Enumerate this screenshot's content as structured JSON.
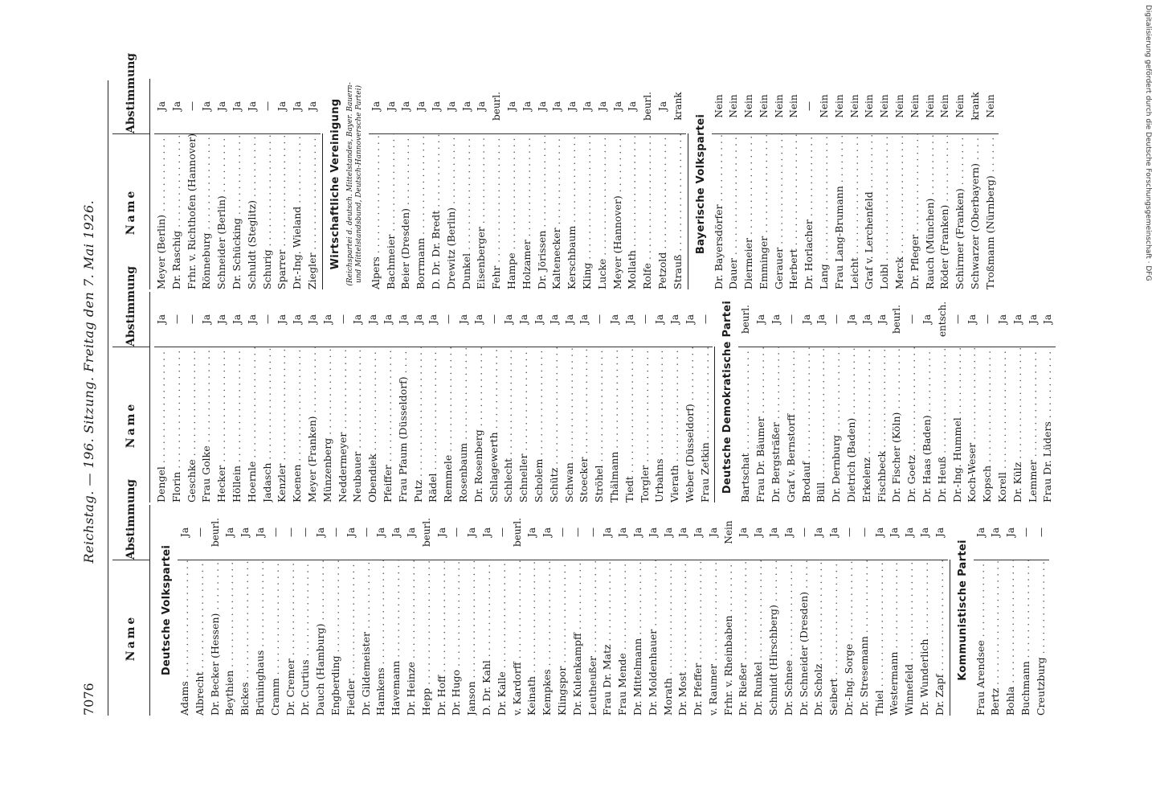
{
  "header": {
    "page_number": "7076",
    "title": "Reichstag. — 196. Sitzung. Freitag den 7. Mai 1926."
  },
  "column_headers": {
    "name": "Name",
    "vote": "Abstimmung"
  },
  "sidenote": "Digitalisierung gefördert durch die Deutsche Forschungsgemeinschaft · DFG",
  "block1": [
    {
      "party": "Deutsche Volkspartei",
      "rows": [
        {
          "n": "Adams",
          "v": "Ja"
        },
        {
          "n": "Albrecht",
          "v": "—"
        },
        {
          "n": "Dr. Becker (Hessen)",
          "v": "beurl."
        },
        {
          "n": "Beythien",
          "v": "Ja"
        },
        {
          "n": "Bickes",
          "v": "Ja"
        },
        {
          "n": "Brüninghaus",
          "v": "Ja"
        },
        {
          "n": "Cramm",
          "v": "—"
        },
        {
          "n": "Dr. Cremer",
          "v": "—"
        },
        {
          "n": "Dr. Curtius",
          "v": "—"
        },
        {
          "n": "Dauch (Hamburg)",
          "v": "Ja"
        },
        {
          "n": "Engberding",
          "v": "—"
        },
        {
          "n": "Fiedler",
          "v": "Ja"
        },
        {
          "n": "Dr. Gildemeister",
          "v": "—"
        },
        {
          "n": "Hamkens",
          "v": "Ja"
        },
        {
          "n": "Havemann",
          "v": "Ja"
        },
        {
          "n": "Dr. Heinze",
          "v": "Ja"
        },
        {
          "n": "Hepp",
          "v": "beurl."
        },
        {
          "n": "Dr. Hoff",
          "v": "Ja"
        },
        {
          "n": "Dr. Hugo",
          "v": "—"
        },
        {
          "n": "Janson",
          "v": "Ja"
        },
        {
          "n": "D. Dr. Kahl",
          "v": "Ja"
        },
        {
          "n": "Dr. Kalle",
          "v": "—"
        },
        {
          "n": "v. Kardorff",
          "v": "beurl."
        },
        {
          "n": "Keinath",
          "v": "Ja"
        },
        {
          "n": "Kempkes",
          "v": "Ja"
        },
        {
          "n": "Klingspor",
          "v": "—"
        },
        {
          "n": "Dr. Kulenkampff",
          "v": "—"
        },
        {
          "n": "Leutheußer",
          "v": "—"
        },
        {
          "n": "Frau Dr. Matz",
          "v": "Ja"
        },
        {
          "n": "Frau Mende",
          "v": "Ja"
        },
        {
          "n": "Dr. Mittelmann",
          "v": "Ja"
        },
        {
          "n": "Dr. Moldenhauer",
          "v": "Ja"
        },
        {
          "n": "Morath",
          "v": "Ja"
        },
        {
          "n": "Dr. Most",
          "v": "Ja"
        },
        {
          "n": "Dr. Pfeffer",
          "v": "Ja"
        },
        {
          "n": "v. Raumer",
          "v": "Ja"
        },
        {
          "n": "Frhr. v. Rheinbaben",
          "v": "Nein"
        },
        {
          "n": "Dr. Rießer",
          "v": "Ja"
        },
        {
          "n": "Dr. Runkel",
          "v": "Ja"
        },
        {
          "n": "Schmidt (Hirschberg)",
          "v": "Ja"
        },
        {
          "n": "Dr. Schnee",
          "v": "Ja"
        },
        {
          "n": "Dr. Schneider (Dresden)",
          "v": "—"
        },
        {
          "n": "Dr. Scholz",
          "v": "Ja"
        },
        {
          "n": "Seibert",
          "v": "Ja"
        },
        {
          "n": "Dr.-Ing. Sorge",
          "v": "—"
        },
        {
          "n": "Dr. Stresemann",
          "v": "—"
        },
        {
          "n": "Thiel",
          "v": "Ja"
        },
        {
          "n": "Westermann",
          "v": "Ja"
        },
        {
          "n": "Winnefeld",
          "v": "Ja"
        },
        {
          "n": "Dr. Wunderlich",
          "v": "Ja"
        },
        {
          "n": "Dr. Zapf",
          "v": "Ja"
        }
      ]
    },
    {
      "party": "Kommunistische Partei",
      "rows": [
        {
          "n": "Frau Arendsee",
          "v": "Ja"
        },
        {
          "n": "Bertz",
          "v": "Ja"
        },
        {
          "n": "Bohla",
          "v": "Ja"
        },
        {
          "n": "Buchmann",
          "v": "—"
        },
        {
          "n": "Creutzburg",
          "v": "—"
        }
      ]
    }
  ],
  "block2": [
    {
      "party": "",
      "rows": [
        {
          "n": "Dengel",
          "v": "Ja"
        },
        {
          "n": "Florin",
          "v": "—"
        },
        {
          "n": "Geschke",
          "v": "—"
        },
        {
          "n": "Frau Golke",
          "v": "Ja"
        },
        {
          "n": "Hecker",
          "v": "Ja"
        },
        {
          "n": "Höllein",
          "v": "Ja"
        },
        {
          "n": "Hoernle",
          "v": "Ja"
        },
        {
          "n": "Jadasch",
          "v": "—"
        },
        {
          "n": "Kenzler",
          "v": "Ja"
        },
        {
          "n": "Koenen",
          "v": "Ja"
        },
        {
          "n": "Meyer (Franken)",
          "v": "Ja"
        },
        {
          "n": "Münzenberg",
          "v": "Ja"
        },
        {
          "n": "Neddermeyer",
          "v": "—"
        },
        {
          "n": "Neubauer",
          "v": "Ja"
        },
        {
          "n": "Obendiek",
          "v": "Ja"
        },
        {
          "n": "Pfeiffer",
          "v": "Ja"
        },
        {
          "n": "Frau Pfaum (Düsseldorf)",
          "v": "Ja"
        },
        {
          "n": "Putz",
          "v": "Ja"
        },
        {
          "n": "Rädel",
          "v": "Ja"
        },
        {
          "n": "Remmele",
          "v": "—"
        },
        {
          "n": "Rosenbaum",
          "v": "Ja"
        },
        {
          "n": "Dr. Rosenberg",
          "v": "Ja"
        },
        {
          "n": "Schlagewerth",
          "v": "—"
        },
        {
          "n": "Schlecht",
          "v": "Ja"
        },
        {
          "n": "Schneller",
          "v": "Ja"
        },
        {
          "n": "Scholem",
          "v": "Ja"
        },
        {
          "n": "Schütz",
          "v": "Ja"
        },
        {
          "n": "Schwan",
          "v": "Ja"
        },
        {
          "n": "Stoecker",
          "v": "Ja"
        },
        {
          "n": "Ströhel",
          "v": "—"
        },
        {
          "n": "Thälmann",
          "v": "Ja"
        },
        {
          "n": "Tiedt",
          "v": "Ja"
        },
        {
          "n": "Torgler",
          "v": "—"
        },
        {
          "n": "Urbahns",
          "v": "Ja"
        },
        {
          "n": "Vierath",
          "v": "Ja"
        },
        {
          "n": "Weber (Düsseldorf)",
          "v": "Ja"
        },
        {
          "n": "Frau Zetkin",
          "v": "—"
        }
      ]
    },
    {
      "party": "Deutsche Demokratische Partei",
      "rows": [
        {
          "n": "Bartschat",
          "v": "beurl."
        },
        {
          "n": "Frau Dr. Bäumer",
          "v": "Ja"
        },
        {
          "n": "Dr. Bergsträßer",
          "v": "Ja"
        },
        {
          "n": "Graf v. Bernstorff",
          "v": "—"
        },
        {
          "n": "Brodauf",
          "v": "Ja"
        },
        {
          "n": "Büll",
          "v": "Ja"
        },
        {
          "n": "Dr. Dernburg",
          "v": "—"
        },
        {
          "n": "Dietrich (Baden)",
          "v": "Ja"
        },
        {
          "n": "Erkelenz",
          "v": "Ja"
        },
        {
          "n": "Fischbeck",
          "v": "Ja"
        },
        {
          "n": "Dr. Fischer (Köln)",
          "v": "beurl."
        },
        {
          "n": "Dr. Goetz",
          "v": "—"
        },
        {
          "n": "Dr. Haas (Baden)",
          "v": "Ja"
        },
        {
          "n": "Dr. Heuß",
          "v": "entsch."
        },
        {
          "n": "Dr.-Ing. Hummel",
          "v": "—"
        },
        {
          "n": "Koch-Weser",
          "v": "Ja"
        },
        {
          "n": "Kopsch",
          "v": "—"
        },
        {
          "n": "Korell",
          "v": "Ja"
        },
        {
          "n": "Dr. Külz",
          "v": "Ja"
        },
        {
          "n": "Lemmer",
          "v": "Ja"
        },
        {
          "n": "Frau Dr. Lüders",
          "v": "Ja"
        }
      ]
    }
  ],
  "block3": [
    {
      "party": "",
      "rows": [
        {
          "n": "Meyer (Berlin)",
          "v": "Ja"
        },
        {
          "n": "Dr. Raschig",
          "v": "Ja"
        },
        {
          "n": "Frhr. v. Richthofen (Hannover)",
          "v": "—"
        },
        {
          "n": "Rönneburg",
          "v": "Ja"
        },
        {
          "n": "Schneider (Berlin)",
          "v": "Ja"
        },
        {
          "n": "Dr. Schücking",
          "v": "Ja"
        },
        {
          "n": "Schuldt (Steglitz)",
          "v": "Ja"
        },
        {
          "n": "Schurig",
          "v": "—"
        },
        {
          "n": "Sparrer",
          "v": "Ja"
        },
        {
          "n": "Dr.-Ing. Wieland",
          "v": "Ja"
        },
        {
          "n": "Ziegler",
          "v": "Ja"
        }
      ]
    },
    {
      "party": "Wirtschaftliche Vereinigung",
      "sub": "(Reichspartei d. deutsch. Mittelstandes, Bayer. Bauern- und Mittelstandsbund, Deutsch-Hannoversche Partei)",
      "rows": [
        {
          "n": "Alpers",
          "v": "Ja"
        },
        {
          "n": "Bachmeier",
          "v": "Ja"
        },
        {
          "n": "Beier (Dresden)",
          "v": "Ja"
        },
        {
          "n": "Borrmann",
          "v": "Ja"
        },
        {
          "n": "D. Dr. Dr. Bredt",
          "v": "Ja"
        },
        {
          "n": "Drewitz (Berlin)",
          "v": "Ja"
        },
        {
          "n": "Dunkel",
          "v": "Ja"
        },
        {
          "n": "Eisenberger",
          "v": "Ja"
        },
        {
          "n": "Fehr",
          "v": "beurl."
        },
        {
          "n": "Hampe",
          "v": "Ja"
        },
        {
          "n": "Holzamer",
          "v": "Ja"
        },
        {
          "n": "Dr. Jörissen",
          "v": "Ja"
        },
        {
          "n": "Kaltenecker",
          "v": "Ja"
        },
        {
          "n": "Kerschbaum",
          "v": "Ja"
        },
        {
          "n": "Kling",
          "v": "Ja"
        },
        {
          "n": "Lucke",
          "v": "Ja"
        },
        {
          "n": "Meyer (Hannover)",
          "v": "Ja"
        },
        {
          "n": "Mollath",
          "v": "Ja"
        },
        {
          "n": "Rolfe",
          "v": "beurl."
        },
        {
          "n": "Petzold",
          "v": "Ja"
        },
        {
          "n": "Strauß",
          "v": "krank"
        }
      ]
    }
  ],
  "block4": [
    {
      "party": "Bayerische Volkspartei",
      "rows": [
        {
          "n": "Dr. Bayersdörfer",
          "v": "Nein"
        },
        {
          "n": "Dauer",
          "v": "Nein"
        },
        {
          "n": "Diermeier",
          "v": "Nein"
        },
        {
          "n": "Emminger",
          "v": "Nein"
        },
        {
          "n": "Gerauer",
          "v": "Nein"
        },
        {
          "n": "Herbert",
          "v": "Nein"
        },
        {
          "n": "Dr. Horlacher",
          "v": "—"
        },
        {
          "n": "Lang",
          "v": "Nein"
        },
        {
          "n": "Frau Lang-Brumann",
          "v": "Nein"
        },
        {
          "n": "Leicht",
          "v": "Nein"
        },
        {
          "n": "Graf v. Lerchenfeld",
          "v": "Nein"
        },
        {
          "n": "Loibl",
          "v": "Nein"
        },
        {
          "n": "Merck",
          "v": "Nein"
        },
        {
          "n": "Dr. Pfleger",
          "v": "Nein"
        },
        {
          "n": "Rauch (München)",
          "v": "Nein"
        },
        {
          "n": "Röder (Franken)",
          "v": "Nein"
        },
        {
          "n": "Schirmer (Franken)",
          "v": "Nein"
        },
        {
          "n": "Schwarzer (Oberbayern)",
          "v": "krank"
        },
        {
          "n": "Troßmann (Nürnberg)",
          "v": "Nein"
        }
      ]
    }
  ]
}
